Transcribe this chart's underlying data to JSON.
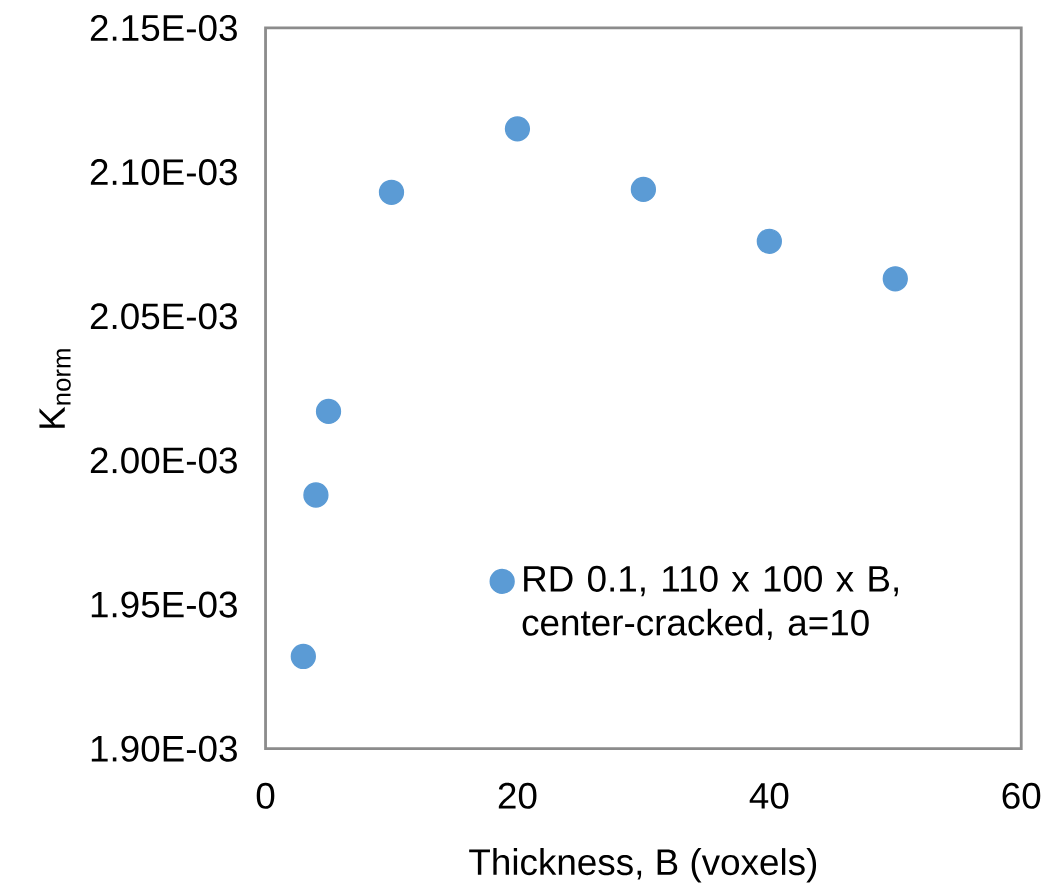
{
  "chart_data": {
    "type": "scatter",
    "xlabel": "Thickness, B (voxels)",
    "ylabel": "K$_{norm}$",
    "x": [
      3,
      4,
      5,
      10,
      20,
      30,
      40,
      50
    ],
    "series": [
      {
        "name": "RD 0.1, 110 x 100 x B, center-cracked, a=10",
        "color": "#5b9bd5",
        "values": [
          0.001932,
          0.001988,
          0.002017,
          0.002093,
          0.002115,
          0.002094,
          0.002076,
          0.002063
        ]
      }
    ],
    "xlim": [
      0,
      60
    ],
    "xticks": [
      0,
      20,
      40,
      60
    ],
    "ylim": [
      0.0019,
      0.00215
    ],
    "yticks": [
      {
        "value": 0.0019,
        "label": "1.90E-03"
      },
      {
        "value": 0.00195,
        "label": "1.95E-03"
      },
      {
        "value": 0.002,
        "label": "2.00E-03"
      },
      {
        "value": 0.00205,
        "label": "2.05E-03"
      },
      {
        "value": 0.0021,
        "label": "2.10E-03"
      },
      {
        "value": 0.00215,
        "label": "2.15E-03"
      }
    ],
    "grid": false,
    "legend": "bottom right"
  }
}
